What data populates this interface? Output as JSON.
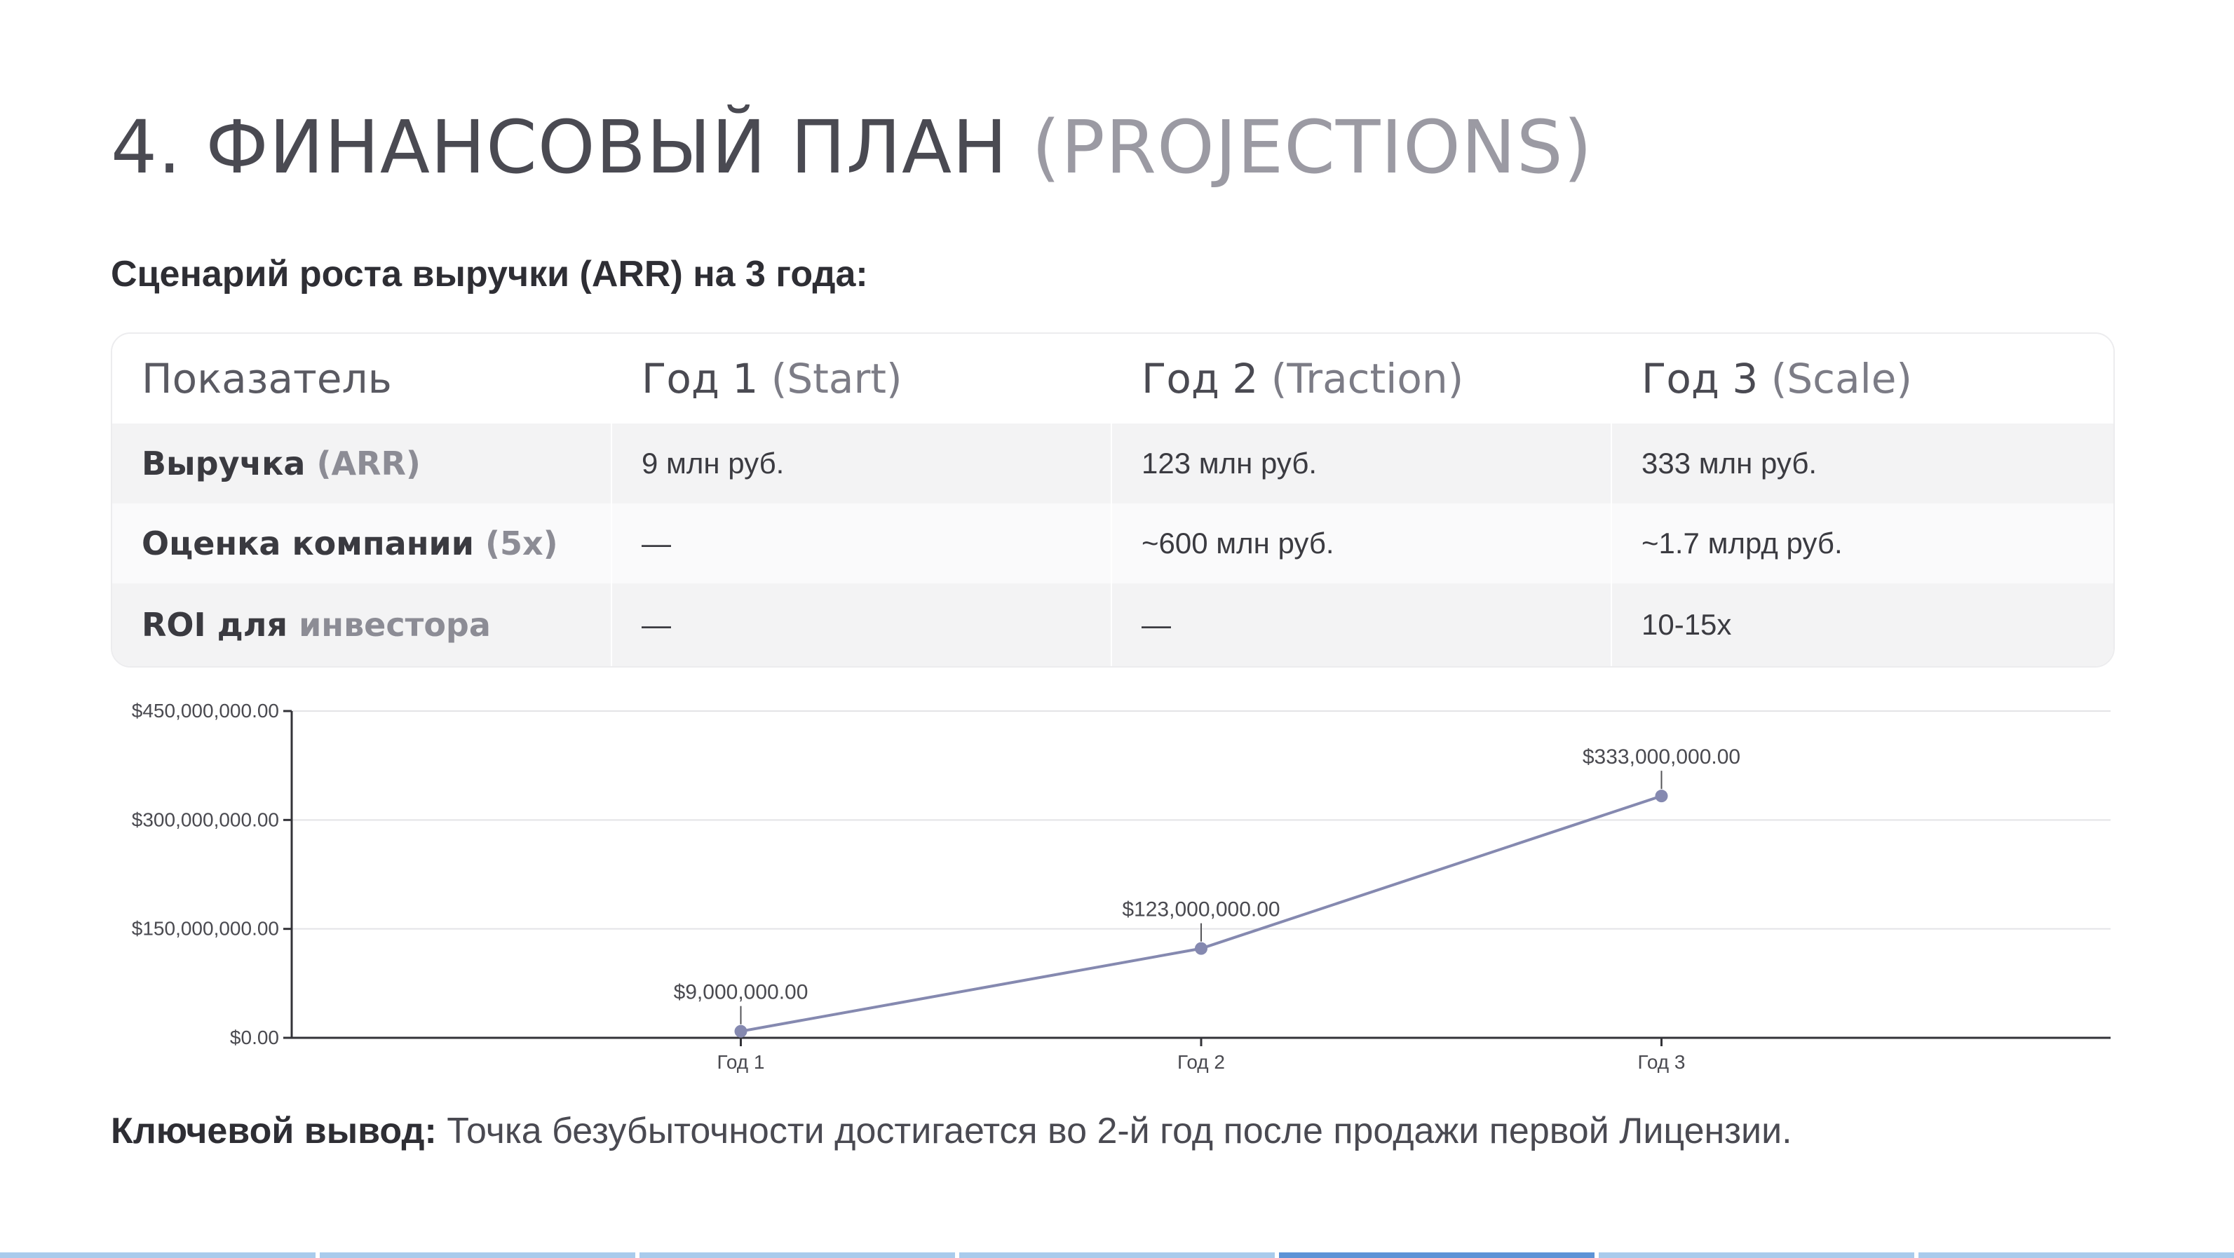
{
  "title": {
    "main": "4. ФИНАНСОВЫЙ ПЛАН",
    "muted": "(PROJECTIONS)"
  },
  "subtitle": "Сценарий роста выручки (ARR) на 3 года:",
  "table": {
    "headers": [
      {
        "a": "Показатель",
        "b": ""
      },
      {
        "a": "Год 1",
        "b": "(Start)"
      },
      {
        "a": "Год 2",
        "b": "(Traction)"
      },
      {
        "a": "Год 3",
        "b": "(Scale)"
      }
    ],
    "rows": [
      {
        "label": {
          "a": "Выручка",
          "b": "(ARR)"
        },
        "values": [
          "9 млн руб.",
          "123 млн руб.",
          "333 млн руб."
        ]
      },
      {
        "label": {
          "a": "Оценка компании",
          "b": "(5x)"
        },
        "values": [
          "—",
          "~600 млн руб.",
          "~1.7 млрд руб."
        ]
      },
      {
        "label": {
          "a": "ROI для",
          "b": "инвестора"
        },
        "values": [
          "—",
          "—",
          "10-15x"
        ]
      }
    ]
  },
  "chart_data": {
    "type": "line",
    "categories": [
      "Год 1",
      "Год 2",
      "Год 3"
    ],
    "values": [
      9000000,
      123000000,
      333000000
    ],
    "data_labels": [
      "$9,000,000.00",
      "$123,000,000.00",
      "$333,000,000.00"
    ],
    "yticks": [
      0,
      150000000,
      300000000,
      450000000
    ],
    "ytick_labels": [
      "$0.00",
      "$150,000,000.00",
      "$300,000,000.00",
      "$450,000,000.00"
    ],
    "ylim": [
      0,
      450000000
    ],
    "grid": true,
    "line_color": "#8589b0",
    "title": "",
    "xlabel": "",
    "ylabel": ""
  },
  "conclusion": {
    "label": "Ключевой вывод:",
    "text": "Точка безубыточности достигается во 2-й год после продажи первой Лицензии."
  },
  "footer": {
    "segments": 7,
    "active_index": 4
  }
}
